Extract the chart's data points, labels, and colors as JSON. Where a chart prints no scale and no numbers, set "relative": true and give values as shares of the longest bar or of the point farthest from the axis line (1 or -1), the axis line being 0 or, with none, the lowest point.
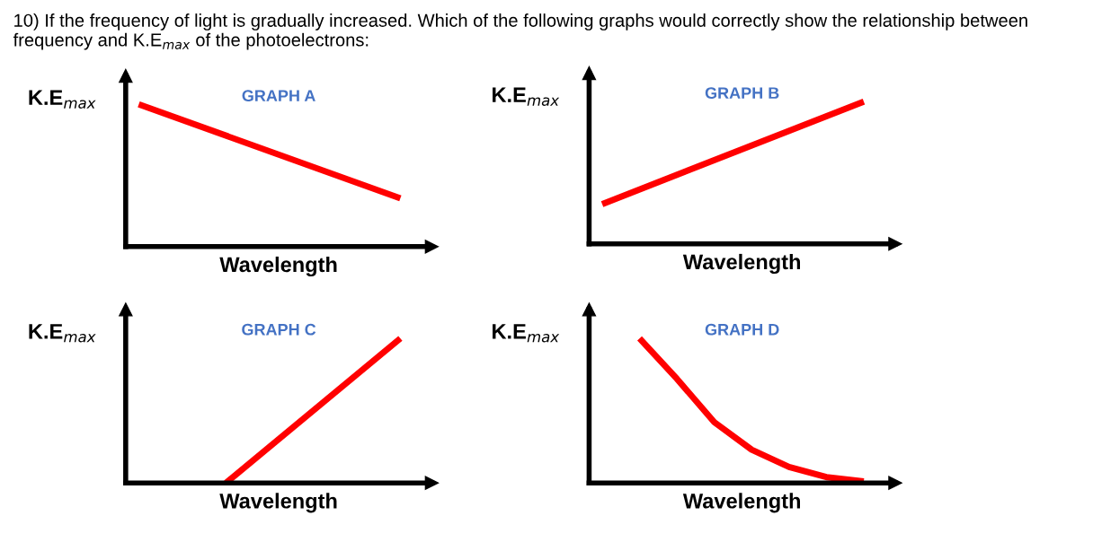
{
  "chart_data": [
    {
      "type": "line",
      "title": "GRAPH A",
      "xlabel": "Wavelength",
      "ylabel": "K.E$_{max}$",
      "relative": true,
      "annotations": [
        "10) If the frequency of light is gradually increased. Which of the following graphs would correctly show the relationship between frequency and K.E$_{max}$ of the photoelectrons:"
      ],
      "categories": [
        null,
        null
      ],
      "series": [
        {
          "color": "#ff0000",
          "values": [
            1,
            0.34
          ]
        }
      ]
    },
    {
      "type": "line",
      "title": "GRAPH B",
      "xlabel": "Wavelength",
      "ylabel": "K.E$_{max}$",
      "relative": true,
      "categories": [
        null,
        null
      ],
      "series": [
        {
          "color": "#ff0000",
          "values": [
            0.28,
            1
          ]
        }
      ]
    },
    {
      "type": "line",
      "title": "GRAPH C",
      "xlabel": "Wavelength",
      "ylabel": "K.E$_{max}$",
      "relative": true,
      "categories": [
        null,
        null,
        null,
        null
      ],
      "series": [
        {
          "color": "#ff0000",
          "values": [
            null,
            0,
            null,
            1
          ]
        }
      ]
    },
    {
      "type": "line",
      "title": "GRAPH D",
      "xlabel": "Wavelength",
      "ylabel": "K.E$_{max}$",
      "relative": true,
      "categories": [
        null,
        null,
        null,
        null,
        null,
        null,
        null,
        null
      ],
      "series": [
        {
          "color": "#ff0000",
          "values": [
            null,
            1,
            0.72,
            0.42,
            0.23,
            0.11,
            0.04,
            0.01
          ]
        }
      ]
    }
  ]
}
